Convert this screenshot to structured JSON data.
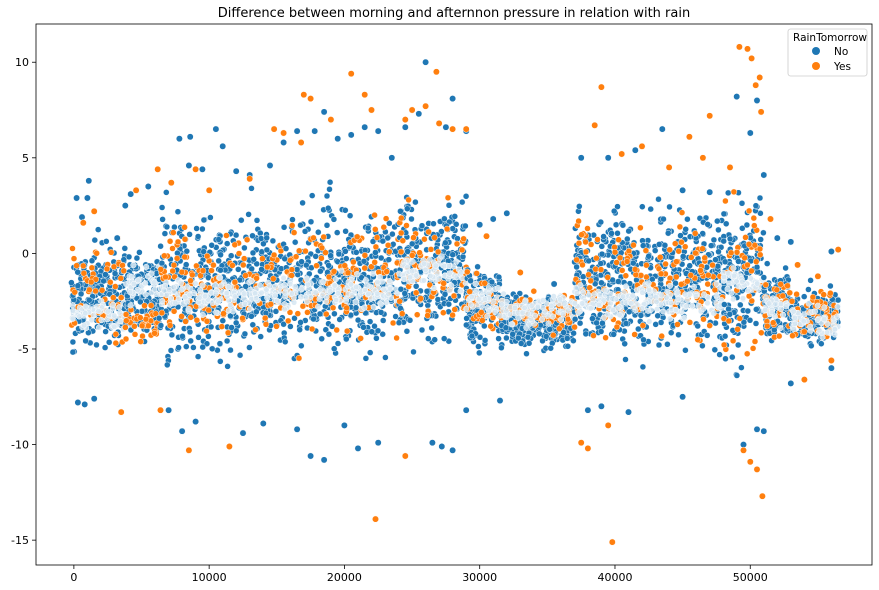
{
  "chart_data": {
    "type": "scatter",
    "title": "Difference between morning and afternnon pressure in relation with rain",
    "xlabel": "",
    "ylabel": "",
    "xlim": [
      -2800,
      59000
    ],
    "ylim": [
      -16.3,
      12.0
    ],
    "xticks": [
      0,
      10000,
      20000,
      30000,
      40000,
      50000
    ],
    "yticks": [
      -15,
      -10,
      -5,
      0,
      5,
      10
    ],
    "grid": false,
    "legend": {
      "title": "RainTomorrow",
      "position": "top-right",
      "entries": [
        {
          "label": "No",
          "color": "#1f77b4"
        },
        {
          "label": "Yes",
          "color": "#ff7f0e"
        }
      ]
    },
    "series": [
      {
        "name": "No",
        "color": "#1f77b4",
        "points": [
          [
            200,
            2.9
          ],
          [
            600,
            1.9
          ],
          [
            1000,
            2.9
          ],
          [
            1100,
            3.8
          ],
          [
            1500,
            -7.6
          ],
          [
            300,
            -7.8
          ],
          [
            800,
            -7.9
          ],
          [
            3200,
            0.8
          ],
          [
            3800,
            2.5
          ],
          [
            4200,
            3.1
          ],
          [
            5500,
            3.5
          ],
          [
            7000,
            -8.2
          ],
          [
            7800,
            6.0
          ],
          [
            8600,
            6.1
          ],
          [
            8500,
            4.6
          ],
          [
            9500,
            4.4
          ],
          [
            10500,
            6.5
          ],
          [
            11000,
            5.6
          ],
          [
            12000,
            4.3
          ],
          [
            13000,
            4.1
          ],
          [
            14500,
            4.6
          ],
          [
            15500,
            5.8
          ],
          [
            16500,
            6.4
          ],
          [
            17800,
            6.4
          ],
          [
            18500,
            7.4
          ],
          [
            19500,
            6.0
          ],
          [
            20500,
            6.2
          ],
          [
            21500,
            6.6
          ],
          [
            22500,
            6.4
          ],
          [
            23500,
            5.0
          ],
          [
            24500,
            6.6
          ],
          [
            25500,
            7.3
          ],
          [
            26000,
            10.0
          ],
          [
            27500,
            6.6
          ],
          [
            28000,
            8.1
          ],
          [
            29000,
            6.4
          ],
          [
            30000,
            1.5
          ],
          [
            31000,
            1.8
          ],
          [
            32000,
            2.1
          ],
          [
            35500,
            -1.6
          ],
          [
            37500,
            5.0
          ],
          [
            38500,
            6.7
          ],
          [
            39500,
            5.0
          ],
          [
            41500,
            5.4
          ],
          [
            43500,
            6.5
          ],
          [
            45000,
            3.3
          ],
          [
            47000,
            3.2
          ],
          [
            49000,
            8.2
          ],
          [
            50000,
            6.3
          ],
          [
            50500,
            8.0
          ],
          [
            51000,
            4.1
          ],
          [
            52000,
            0.8
          ],
          [
            53000,
            0.6
          ],
          [
            56000,
            0.1
          ],
          [
            8000,
            -9.3
          ],
          [
            9000,
            -8.8
          ],
          [
            12500,
            -9.4
          ],
          [
            14000,
            -8.9
          ],
          [
            16500,
            -9.2
          ],
          [
            17500,
            -10.6
          ],
          [
            18500,
            -10.8
          ],
          [
            20000,
            -9.0
          ],
          [
            21000,
            -10.2
          ],
          [
            22500,
            -9.9
          ],
          [
            26500,
            -9.9
          ],
          [
            27200,
            -10.1
          ],
          [
            28000,
            -10.3
          ],
          [
            29000,
            -8.2
          ],
          [
            31500,
            -7.7
          ],
          [
            38000,
            -8.2
          ],
          [
            39000,
            -8.0
          ],
          [
            41000,
            -8.3
          ],
          [
            45000,
            -7.5
          ],
          [
            49500,
            -10.0
          ],
          [
            50500,
            -9.2
          ],
          [
            51000,
            -9.3
          ],
          [
            53000,
            -6.8
          ],
          [
            56000,
            -6.0
          ]
        ]
      },
      {
        "name": "Yes",
        "color": "#ff7f0e",
        "points": [
          [
            700,
            1.6
          ],
          [
            1500,
            2.2
          ],
          [
            3500,
            -8.3
          ],
          [
            4600,
            3.3
          ],
          [
            6200,
            4.4
          ],
          [
            6400,
            -8.2
          ],
          [
            7200,
            3.7
          ],
          [
            8500,
            -10.3
          ],
          [
            9000,
            4.4
          ],
          [
            10000,
            3.3
          ],
          [
            11500,
            -10.1
          ],
          [
            13000,
            3.9
          ],
          [
            14800,
            6.5
          ],
          [
            15500,
            6.3
          ],
          [
            16800,
            5.8
          ],
          [
            17000,
            8.3
          ],
          [
            17500,
            8.1
          ],
          [
            19000,
            7.0
          ],
          [
            20500,
            9.4
          ],
          [
            21500,
            8.3
          ],
          [
            22000,
            7.5
          ],
          [
            22300,
            -13.9
          ],
          [
            24500,
            7.0
          ],
          [
            24500,
            -10.6
          ],
          [
            25000,
            7.5
          ],
          [
            26000,
            7.7
          ],
          [
            26800,
            9.5
          ],
          [
            27000,
            6.8
          ],
          [
            28000,
            6.5
          ],
          [
            29000,
            6.5
          ],
          [
            30500,
            0.9
          ],
          [
            33000,
            -1.0
          ],
          [
            37500,
            -9.9
          ],
          [
            38000,
            -10.2
          ],
          [
            38500,
            6.7
          ],
          [
            39000,
            8.7
          ],
          [
            39500,
            -9.0
          ],
          [
            39800,
            -15.1
          ],
          [
            40500,
            5.2
          ],
          [
            42000,
            5.6
          ],
          [
            44000,
            4.5
          ],
          [
            45500,
            6.1
          ],
          [
            46500,
            5.0
          ],
          [
            47000,
            7.2
          ],
          [
            48500,
            4.5
          ],
          [
            49200,
            10.8
          ],
          [
            49800,
            10.7
          ],
          [
            50100,
            10.2
          ],
          [
            50400,
            8.8
          ],
          [
            50700,
            9.2
          ],
          [
            50800,
            7.4
          ],
          [
            50900,
            -12.7
          ],
          [
            50500,
            -11.3
          ],
          [
            50000,
            -10.9
          ],
          [
            49500,
            -10.3
          ],
          [
            51500,
            1.8
          ],
          [
            53500,
            -0.6
          ],
          [
            55000,
            -1.2
          ],
          [
            56500,
            0.2
          ],
          [
            54000,
            -6.6
          ],
          [
            56000,
            -5.6
          ]
        ]
      }
    ],
    "density_bands": [
      {
        "x": [
          -200,
          3800
        ],
        "no": [
          -6.5,
          2.0
        ],
        "yes": [
          -5.5,
          1.5
        ],
        "center": -3.2
      },
      {
        "x": [
          3800,
          6300
        ],
        "no": [
          -5.5,
          1.2
        ],
        "yes": [
          -5.2,
          -2.2
        ],
        "center": -1.6
      },
      {
        "x": [
          6300,
          15500
        ],
        "no": [
          -7.2,
          3.8
        ],
        "yes": [
          -6.2,
          2.8
        ],
        "center": -2.2
      },
      {
        "x": [
          15500,
          24000
        ],
        "no": [
          -7.0,
          4.5
        ],
        "yes": [
          -6.3,
          3.5
        ],
        "center": -2.0
      },
      {
        "x": [
          24000,
          29000
        ],
        "no": [
          -6.5,
          5.0
        ],
        "yes": [
          -5.8,
          4.2
        ],
        "center": -1.0
      },
      {
        "x": [
          29000,
          31500
        ],
        "no": [
          -6.0,
          0.5
        ],
        "yes": [
          -5.0,
          0.0
        ],
        "center": -2.4
      },
      {
        "x": [
          31500,
          37000
        ],
        "no": [
          -5.5,
          -1.5
        ],
        "yes": [
          -4.5,
          -1.8
        ],
        "center": -3.0
      },
      {
        "x": [
          37000,
          48000
        ],
        "no": [
          -7.0,
          4.5
        ],
        "yes": [
          -6.5,
          3.8
        ],
        "center": -2.5
      },
      {
        "x": [
          48000,
          51000
        ],
        "no": [
          -8.5,
          5.5
        ],
        "yes": [
          -7.5,
          5.0
        ],
        "center": -1.5
      },
      {
        "x": [
          51000,
          53000
        ],
        "no": [
          -5.5,
          0.0
        ],
        "yes": [
          -5.0,
          -0.5
        ],
        "center": -2.8
      },
      {
        "x": [
          53000,
          56500
        ],
        "no": [
          -5.5,
          -1.0
        ],
        "yes": [
          -5.0,
          -1.2
        ],
        "center": -3.5
      }
    ]
  }
}
